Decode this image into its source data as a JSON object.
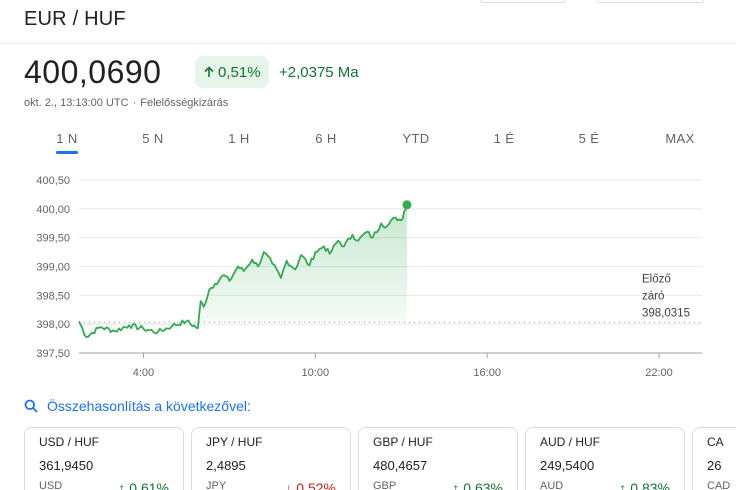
{
  "header": {
    "pair": "EUR / HUF",
    "price": "400,0690",
    "change_pct": "0,51%",
    "change_abs": "+2,0375 Ma",
    "timestamp": "okt. 2., 13:13:00 UTC",
    "disclaimer": "Felelősségkizárás",
    "accent_up": "#137333",
    "accent_up_bg": "#e6f4ea"
  },
  "tabs": [
    {
      "label": "1 N",
      "active": true
    },
    {
      "label": "5 N",
      "active": false
    },
    {
      "label": "1 H",
      "active": false
    },
    {
      "label": "6 H",
      "active": false
    },
    {
      "label": "YTD",
      "active": false
    },
    {
      "label": "1 É",
      "active": false
    },
    {
      "label": "5 É",
      "active": false
    },
    {
      "label": "MAX",
      "active": false
    }
  ],
  "chart_data": {
    "type": "area",
    "ylim": [
      397.5,
      400.5
    ],
    "xlim": [
      1.75,
      23.5
    ],
    "y_ticks": [
      "400,50",
      "400,00",
      "399,50",
      "399,00",
      "398,50",
      "398,00",
      "397,50"
    ],
    "y_tick_values": [
      400.5,
      400.0,
      399.5,
      399.0,
      398.5,
      398.0,
      397.5
    ],
    "x_ticks": [
      "4:00",
      "10:00",
      "16:00",
      "22:00"
    ],
    "x_tick_values": [
      4,
      10,
      16,
      22
    ],
    "grid": true,
    "line_color": "#34a853",
    "previous_close": {
      "label_line1": "Előző",
      "label_line2": "záró",
      "value_label": "398,0315",
      "value": 398.0315
    },
    "series": [
      {
        "x": [
          1.75,
          2.0,
          2.5,
          3.0,
          3.5,
          4.0,
          4.5,
          5.0,
          5.5,
          5.9,
          6.0,
          6.1,
          6.3,
          6.5,
          6.8,
          7.0,
          7.3,
          7.5,
          7.8,
          8.0,
          8.2,
          8.5,
          8.8,
          9.0,
          9.3,
          9.5,
          9.8,
          10.0,
          10.3,
          10.5,
          10.8,
          11.0,
          11.3,
          11.5,
          11.8,
          12.0,
          12.3,
          12.5,
          12.8,
          13.0,
          13.1,
          13.2
        ],
        "y": [
          398.05,
          397.78,
          397.95,
          397.88,
          397.98,
          397.92,
          397.86,
          397.97,
          398.05,
          397.93,
          398.4,
          398.3,
          398.6,
          398.7,
          398.85,
          398.75,
          399.0,
          398.92,
          399.12,
          399.0,
          399.25,
          399.05,
          398.8,
          399.1,
          398.95,
          399.2,
          399.02,
          399.25,
          399.35,
          399.22,
          399.45,
          399.35,
          399.55,
          399.45,
          399.6,
          399.5,
          399.75,
          399.7,
          399.85,
          399.8,
          399.95,
          400.07
        ]
      }
    ]
  },
  "compare": {
    "label": "Összehasonlítás a következővel:"
  },
  "cards": [
    {
      "name": "USD / HUF",
      "price": "361,9450",
      "code": "USD",
      "change": "0,61%",
      "direction": "up",
      "arrow": "↑"
    },
    {
      "name": "JPY / HUF",
      "price": "2,4895",
      "code": "JPY",
      "change": "0,52%",
      "direction": "down",
      "arrow": "↓"
    },
    {
      "name": "GBP / HUF",
      "price": "480,4657",
      "code": "GBP",
      "change": "0,63%",
      "direction": "up",
      "arrow": "↑"
    },
    {
      "name": "AUD / HUF",
      "price": "249,5400",
      "code": "AUD",
      "change": "0,83%",
      "direction": "up",
      "arrow": "↑"
    },
    {
      "name": "CA",
      "price": "26",
      "code": "CAD",
      "change": "",
      "direction": "up",
      "arrow": ""
    }
  ]
}
